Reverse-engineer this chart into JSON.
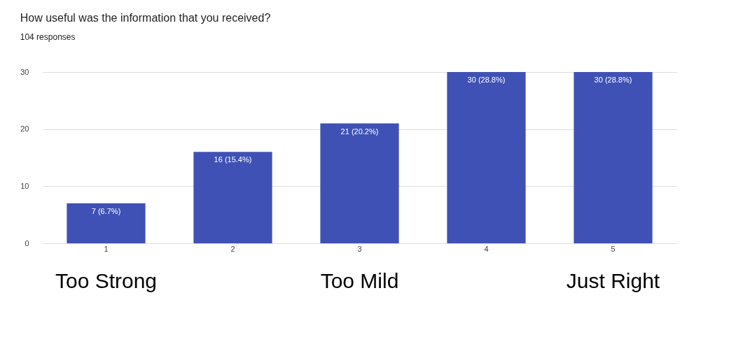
{
  "chart_data": {
    "type": "bar",
    "title": "How useful was the information that you received?",
    "subtitle": "104 responses",
    "categories": [
      "1",
      "2",
      "3",
      "4",
      "5"
    ],
    "values": [
      7,
      16,
      21,
      30,
      30
    ],
    "color": "#3f51b5",
    "value_labels": [
      "7 (6.7%)",
      "16 (15.4%)",
      "21 (20.2%)",
      "30 (28.8%)",
      "30 (28.8%)"
    ],
    "ylim": [
      0,
      30
    ],
    "yticks": [
      0,
      10,
      20,
      30
    ],
    "grid": "y",
    "annotations": [
      "Too Strong",
      "Too Mild",
      "Just Right"
    ]
  }
}
